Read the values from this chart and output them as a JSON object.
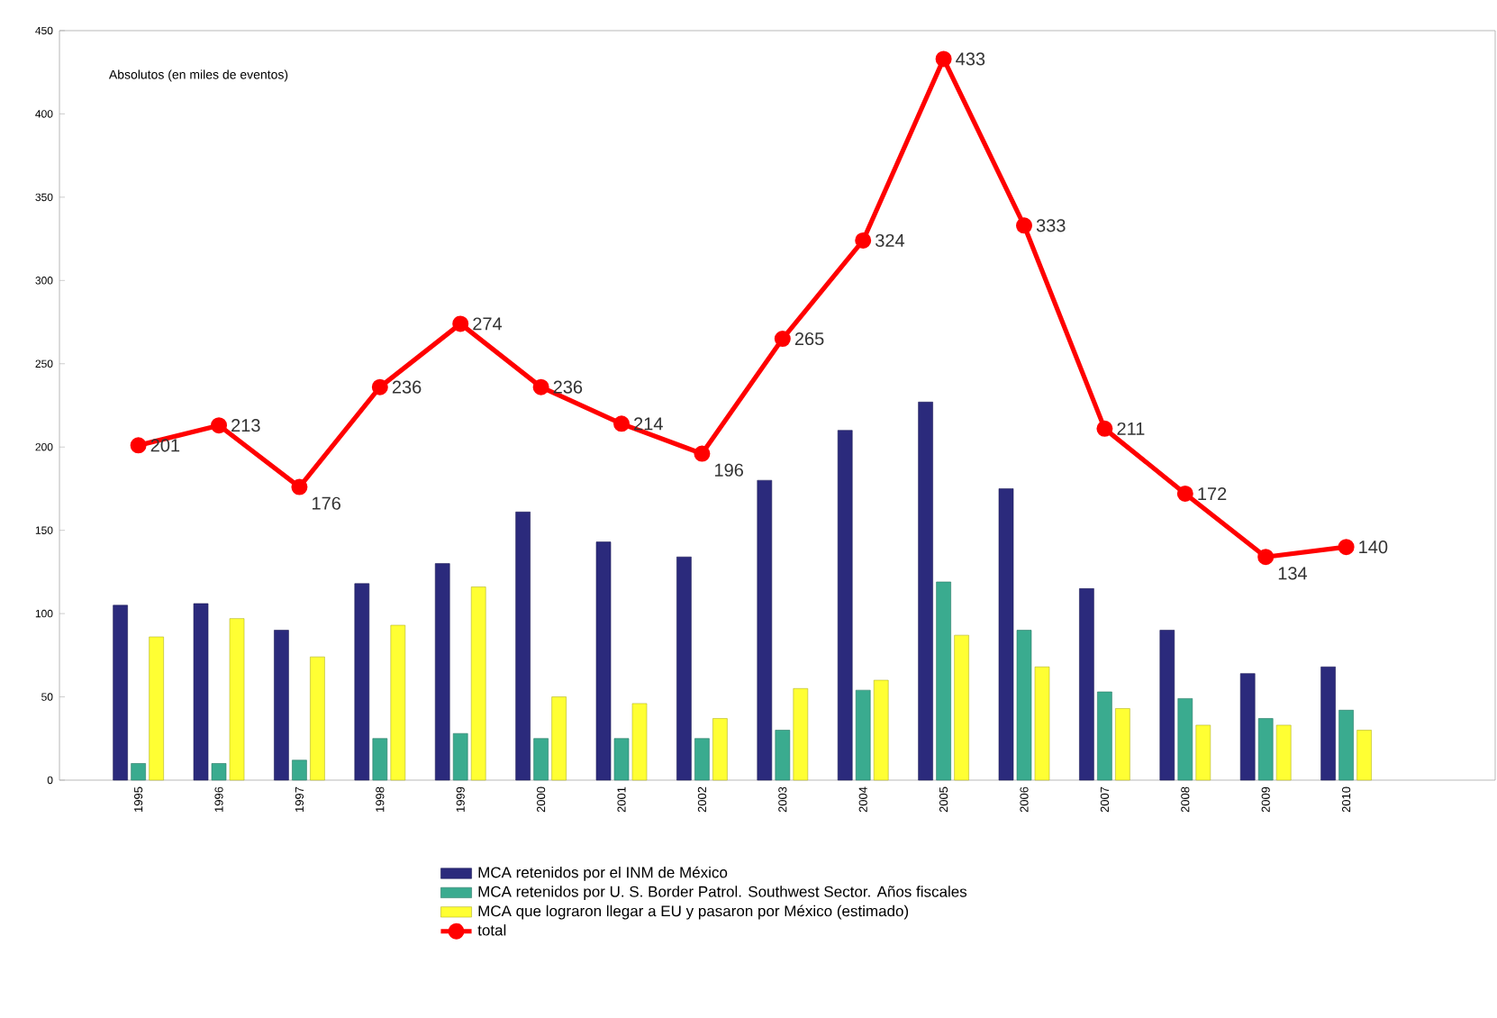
{
  "chart_data": {
    "type": "bar",
    "annotations": [
      "Absolutos (en miles de eventos)"
    ],
    "categories": [
      "1995",
      "1996",
      "1997",
      "1998",
      "1999",
      "2000",
      "2001",
      "2002",
      "2003",
      "2004",
      "2005",
      "2006",
      "2007",
      "2008",
      "2009",
      "2010"
    ],
    "series": [
      {
        "name": "MCA retenidos por el INM de México",
        "color": "#2b2a7c",
        "values": [
          105,
          106,
          90,
          118,
          130,
          161,
          143,
          134,
          180,
          210,
          227,
          175,
          115,
          90,
          64,
          68
        ]
      },
      {
        "name": "MCA retenidos por U. S. Border Patrol. Southwest Sector. Años fiscales",
        "color": "#3aab8f",
        "values": [
          10,
          10,
          12,
          25,
          28,
          25,
          25,
          25,
          30,
          54,
          119,
          90,
          53,
          49,
          37,
          42
        ]
      },
      {
        "name": "MCA que lograron llegar a EU y pasaron por México (estimado)",
        "color": "#ffff33",
        "values": [
          86,
          97,
          74,
          93,
          116,
          50,
          46,
          37,
          55,
          60,
          87,
          68,
          43,
          33,
          33,
          30
        ]
      },
      {
        "name": "total",
        "type": "line",
        "color": "#ff0000",
        "marker": "circle",
        "line_style": "solid",
        "values": [
          201,
          213,
          176,
          236,
          274,
          236,
          214,
          196,
          265,
          324,
          433,
          333,
          211,
          172,
          134,
          140
        ],
        "value_labels": [
          "201",
          "213",
          "176",
          "236",
          "274",
          "236",
          "214",
          "196",
          "265",
          "324",
          "433",
          "333",
          "211",
          "172",
          "134",
          "140"
        ]
      }
    ],
    "ylim": [
      0,
      450
    ],
    "yticks": [
      0,
      50,
      100,
      150,
      200,
      250,
      300,
      350,
      400,
      450
    ],
    "legend": "bottom"
  }
}
